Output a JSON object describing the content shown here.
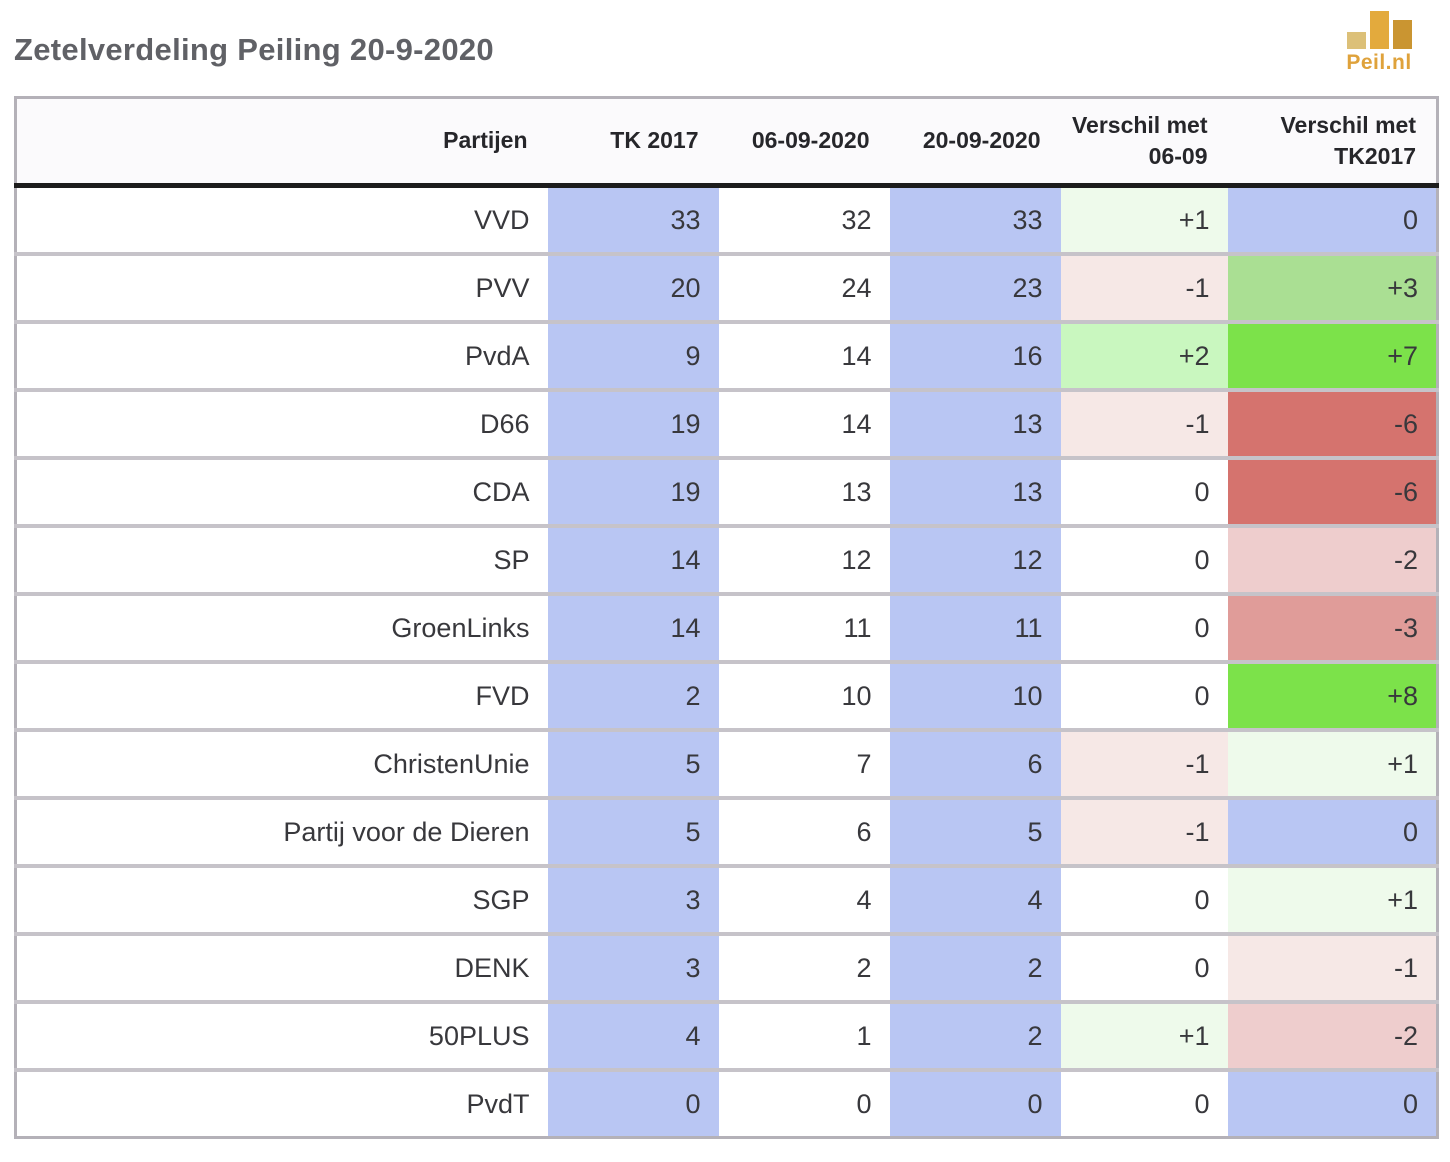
{
  "title": "Zetelverdeling Peiling 20-9-2020",
  "logo": {
    "text": "Peil.nl",
    "text_color": "#dfa23b",
    "bar_colors": [
      "#dcc078",
      "#e3aa3d",
      "#ca9531"
    ]
  },
  "colors": {
    "column_highlight_blue": "#b9c6f3",
    "row_separator": "#c6c3c9",
    "header_divider": "#1c1c1c",
    "table_border": "#b4b1b8"
  },
  "chart_data": {
    "type": "table",
    "title": "Zetelverdeling Peiling 20-9-2020",
    "columns": [
      {
        "key": "partijen",
        "label": "Partijen"
      },
      {
        "key": "tk2017",
        "label": "TK 2017"
      },
      {
        "key": "peiling-0609",
        "label": "06-09-2020"
      },
      {
        "key": "peiling-2009",
        "label": "20-09-2020"
      },
      {
        "key": "verschil-0609",
        "label": "Verschil met\n06-09"
      },
      {
        "key": "verschil-tk2017",
        "label": "Verschil met\nTK2017"
      }
    ],
    "rows": [
      {
        "party": "VVD",
        "tk2017": "33",
        "p0609": "32",
        "p2009": "33",
        "d0609": "+1",
        "d0609_bg": "#eefaeb",
        "dtk2017": "0",
        "dtk2017_bg": "#b9c6f3"
      },
      {
        "party": "PVV",
        "tk2017": "20",
        "p0609": "24",
        "p2009": "23",
        "d0609": "-1",
        "d0609_bg": "#f6e8e6",
        "dtk2017": "+3",
        "dtk2017_bg": "#aadf93"
      },
      {
        "party": "PvdA",
        "tk2017": "9",
        "p0609": "14",
        "p2009": "16",
        "d0609": "+2",
        "d0609_bg": "#c9f7bf",
        "dtk2017": "+7",
        "dtk2017_bg": "#7ce24a"
      },
      {
        "party": "D66",
        "tk2017": "19",
        "p0609": "14",
        "p2009": "13",
        "d0609": "-1",
        "d0609_bg": "#f6e8e6",
        "dtk2017": "-6",
        "dtk2017_bg": "#d5736e"
      },
      {
        "party": "CDA",
        "tk2017": "19",
        "p0609": "13",
        "p2009": "13",
        "d0609": "0",
        "d0609_bg": "#ffffff",
        "dtk2017": "-6",
        "dtk2017_bg": "#d5736e"
      },
      {
        "party": "SP",
        "tk2017": "14",
        "p0609": "12",
        "p2009": "12",
        "d0609": "0",
        "d0609_bg": "#ffffff",
        "dtk2017": "-2",
        "dtk2017_bg": "#eecdcd"
      },
      {
        "party": "GroenLinks",
        "tk2017": "14",
        "p0609": "11",
        "p2009": "11",
        "d0609": "0",
        "d0609_bg": "#ffffff",
        "dtk2017": "-3",
        "dtk2017_bg": "#e09c99"
      },
      {
        "party": "FVD",
        "tk2017": "2",
        "p0609": "10",
        "p2009": "10",
        "d0609": "0",
        "d0609_bg": "#ffffff",
        "dtk2017": "+8",
        "dtk2017_bg": "#7ce24a"
      },
      {
        "party": "ChristenUnie",
        "tk2017": "5",
        "p0609": "7",
        "p2009": "6",
        "d0609": "-1",
        "d0609_bg": "#f6e8e6",
        "dtk2017": "+1",
        "dtk2017_bg": "#eefaeb"
      },
      {
        "party": "Partij voor de Dieren",
        "tk2017": "5",
        "p0609": "6",
        "p2009": "5",
        "d0609": "-1",
        "d0609_bg": "#f6e8e6",
        "dtk2017": "0",
        "dtk2017_bg": "#b9c6f3"
      },
      {
        "party": "SGP",
        "tk2017": "3",
        "p0609": "4",
        "p2009": "4",
        "d0609": "0",
        "d0609_bg": "#ffffff",
        "dtk2017": "+1",
        "dtk2017_bg": "#eefaeb"
      },
      {
        "party": "DENK",
        "tk2017": "3",
        "p0609": "2",
        "p2009": "2",
        "d0609": "0",
        "d0609_bg": "#ffffff",
        "dtk2017": "-1",
        "dtk2017_bg": "#f6e8e6"
      },
      {
        "party": "50PLUS",
        "tk2017": "4",
        "p0609": "1",
        "p2009": "2",
        "d0609": "+1",
        "d0609_bg": "#eefaeb",
        "dtk2017": "-2",
        "dtk2017_bg": "#eecdcd"
      },
      {
        "party": "PvdT",
        "tk2017": "0",
        "p0609": "0",
        "p2009": "0",
        "d0609": "0",
        "d0609_bg": "#ffffff",
        "dtk2017": "0",
        "dtk2017_bg": "#b9c6f3"
      }
    ]
  }
}
